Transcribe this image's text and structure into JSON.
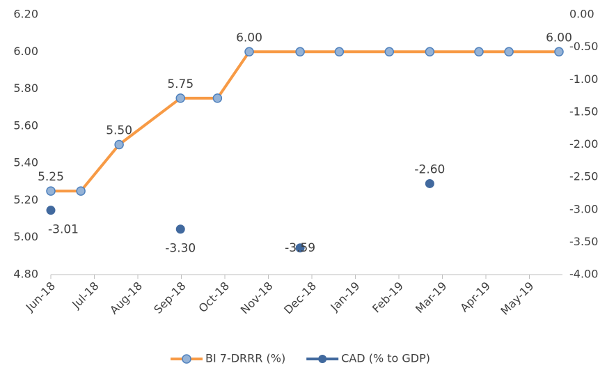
{
  "chart_data": {
    "type": "line",
    "xticks": [
      {
        "value": 0,
        "label": "Jun-18"
      },
      {
        "value": 1,
        "label": "Jul-18"
      },
      {
        "value": 2,
        "label": "Aug-18"
      },
      {
        "value": 3,
        "label": "Sep-18"
      },
      {
        "value": 4,
        "label": "Oct-18"
      },
      {
        "value": 5,
        "label": "Nov-18"
      },
      {
        "value": 6,
        "label": "Dec-18"
      },
      {
        "value": 7,
        "label": "Jan-19"
      },
      {
        "value": 8,
        "label": "Feb-19"
      },
      {
        "value": 9,
        "label": "Mar-19"
      },
      {
        "value": 10,
        "label": "Apr-19"
      },
      {
        "value": 11,
        "label": "May-19"
      }
    ],
    "xlim": [
      0,
      11.76
    ],
    "ylim": [
      4.8,
      6.2
    ],
    "yticks": [
      {
        "value": 4.8,
        "label": "4.80"
      },
      {
        "value": 5.0,
        "label": "5.00"
      },
      {
        "value": 5.2,
        "label": "5.20"
      },
      {
        "value": 5.4,
        "label": "5.40"
      },
      {
        "value": 5.6,
        "label": "5.60"
      },
      {
        "value": 5.8,
        "label": "5.80"
      },
      {
        "value": 6.0,
        "label": "6.00"
      },
      {
        "value": 6.2,
        "label": "6.20"
      }
    ],
    "y2lim": [
      -4,
      0
    ],
    "y2ticks": [
      {
        "value": -4,
        "label": "-4.00"
      },
      {
        "value": -3.5,
        "label": "-3.50"
      },
      {
        "value": -3,
        "label": "-3.00"
      },
      {
        "value": -2.5,
        "label": "-2.50"
      },
      {
        "value": -2,
        "label": "-2.00"
      },
      {
        "value": -1.5,
        "label": "-1.50"
      },
      {
        "value": -1,
        "label": "-1.00"
      },
      {
        "value": -0.5,
        "label": "-0.50"
      },
      {
        "value": 0,
        "label": "0.00"
      }
    ],
    "series": [
      {
        "name": "BI 7-DRRR (%)",
        "color": "#f79a45",
        "marker_color": "#95b3d7",
        "x": [
          0,
          0.69,
          1.57,
          2.98,
          3.83,
          4.56,
          5.73,
          6.63,
          7.78,
          8.71,
          9.84,
          10.53,
          11.68
        ],
        "values": [
          5.25,
          5.25,
          5.5,
          5.75,
          5.75,
          6.0,
          6.0,
          6.0,
          6.0,
          6.0,
          6.0,
          6.0,
          6.0
        ],
        "value_labels": [
          "5.25",
          null,
          "5.50",
          "5.75",
          null,
          "6.00",
          null,
          null,
          null,
          null,
          null,
          null,
          "6.00"
        ]
      },
      {
        "name": "CAD (% to GDP)",
        "color": "#41699e",
        "axis": "y2",
        "x": [
          0,
          2.98,
          5.73,
          8.71
        ],
        "values": [
          -3.01,
          -3.3,
          -3.59,
          -2.6
        ],
        "value_labels": [
          "-3.01",
          "-3.30",
          "-3.59",
          "-2.60"
        ]
      }
    ]
  }
}
